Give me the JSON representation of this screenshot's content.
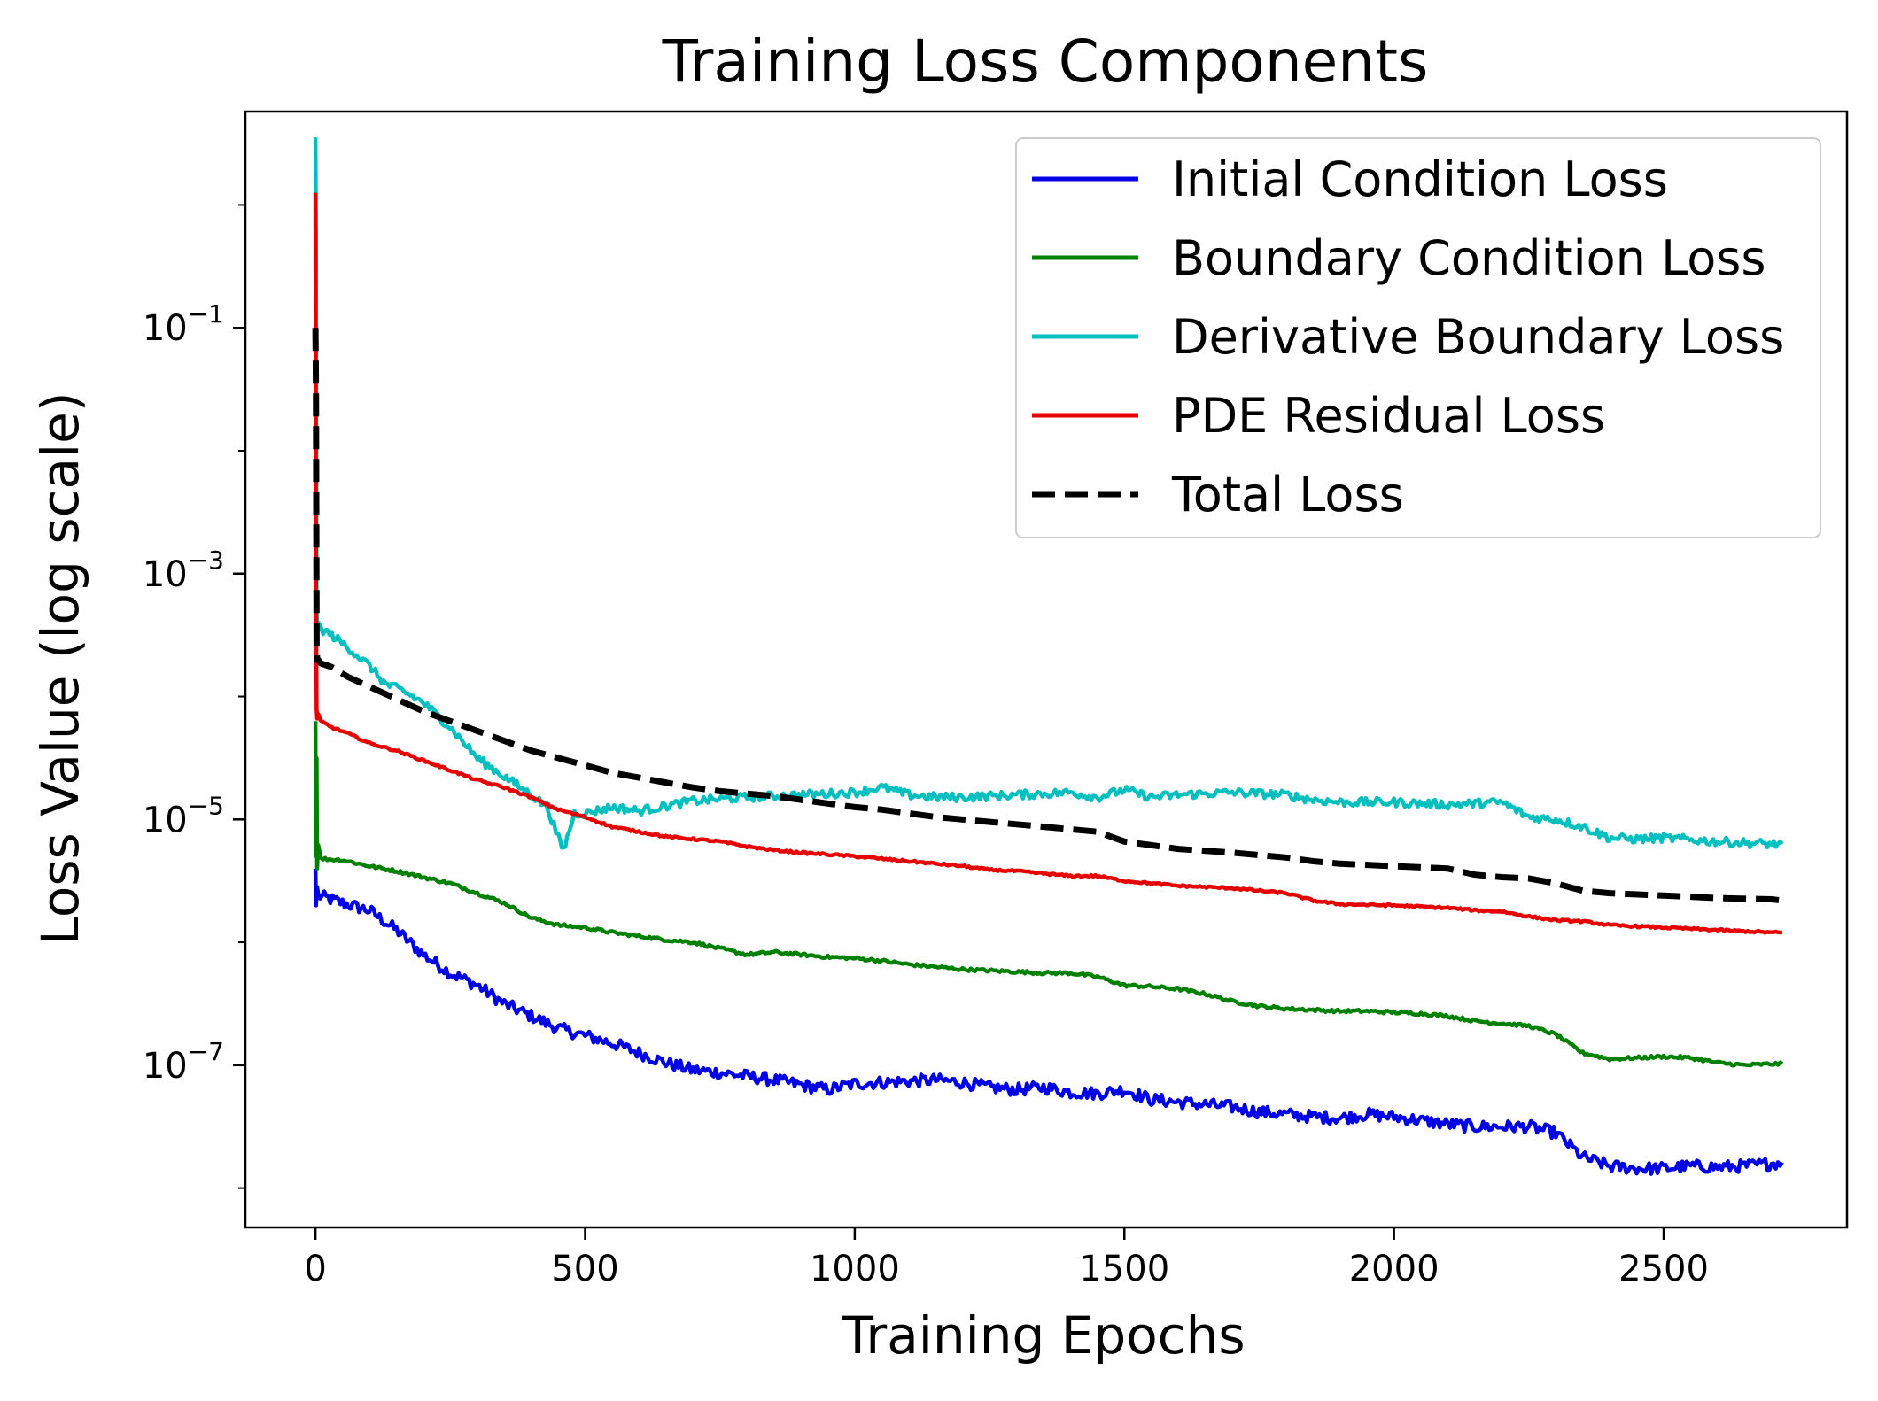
{
  "chart_data": {
    "type": "line",
    "title": "Training Loss Components",
    "xlabel": "Training Epochs",
    "ylabel": "Loss Value (log scale)",
    "yscale": "log",
    "xlim": [
      -130,
      2840
    ],
    "ylim_log10": [
      -8.32,
      0.76
    ],
    "xticks": [
      0,
      500,
      1000,
      1500,
      2000,
      2500
    ],
    "xtick_labels": [
      "0",
      "500",
      "1000",
      "1500",
      "2000",
      "2500"
    ],
    "yticks_log10": [
      -1,
      -3,
      -5,
      -7
    ],
    "ytick_labels": [
      {
        "base": "10",
        "exp": "−1"
      },
      {
        "base": "10",
        "exp": "−3"
      },
      {
        "base": "10",
        "exp": "−5"
      },
      {
        "base": "10",
        "exp": "−7"
      }
    ],
    "legend_position": "top-right",
    "series": [
      {
        "name": "Initial Condition Loss",
        "color": "#0000e6",
        "dash": false,
        "noise": 0.05,
        "x": [
          0,
          1,
          3,
          5,
          20,
          50,
          100,
          150,
          200,
          250,
          300,
          350,
          400,
          450,
          500,
          550,
          600,
          650,
          700,
          750,
          800,
          850,
          900,
          950,
          1000,
          1050,
          1100,
          1150,
          1200,
          1250,
          1300,
          1350,
          1400,
          1450,
          1500,
          1550,
          1600,
          1650,
          1700,
          1750,
          1800,
          1850,
          1900,
          1950,
          2000,
          2050,
          2100,
          2150,
          2200,
          2250,
          2300,
          2350,
          2400,
          2450,
          2500,
          2550,
          2600,
          2650,
          2700,
          2720
        ],
        "y_log10": [
          -5.4,
          -5.7,
          -5.55,
          -5.62,
          -5.64,
          -5.68,
          -5.74,
          -5.9,
          -6.1,
          -6.25,
          -6.35,
          -6.5,
          -6.6,
          -6.7,
          -6.76,
          -6.82,
          -6.9,
          -6.98,
          -7.04,
          -7.06,
          -7.09,
          -7.12,
          -7.16,
          -7.2,
          -7.15,
          -7.14,
          -7.13,
          -7.12,
          -7.14,
          -7.18,
          -7.2,
          -7.18,
          -7.22,
          -7.23,
          -7.2,
          -7.28,
          -7.3,
          -7.32,
          -7.34,
          -7.38,
          -7.4,
          -7.42,
          -7.43,
          -7.4,
          -7.42,
          -7.45,
          -7.48,
          -7.5,
          -7.5,
          -7.5,
          -7.55,
          -7.75,
          -7.82,
          -7.84,
          -7.84,
          -7.82,
          -7.83,
          -7.82,
          -7.8,
          -7.79
        ]
      },
      {
        "name": "Boundary Condition Loss",
        "color": "#008000",
        "dash": false,
        "noise": 0.012,
        "x": [
          0,
          1,
          2,
          3,
          5,
          10,
          50,
          100,
          150,
          200,
          250,
          300,
          350,
          400,
          450,
          500,
          550,
          600,
          650,
          700,
          750,
          800,
          850,
          900,
          950,
          1000,
          1050,
          1100,
          1150,
          1200,
          1250,
          1300,
          1350,
          1400,
          1450,
          1500,
          1550,
          1600,
          1650,
          1700,
          1750,
          1800,
          1850,
          1900,
          1950,
          2000,
          2050,
          2100,
          2150,
          2200,
          2250,
          2300,
          2350,
          2400,
          2450,
          2500,
          2550,
          2600,
          2650,
          2700,
          2720
        ],
        "y_log10": [
          -4.2,
          -5.3,
          -4.5,
          -5.4,
          -5.2,
          -5.32,
          -5.33,
          -5.38,
          -5.42,
          -5.47,
          -5.52,
          -5.6,
          -5.68,
          -5.8,
          -5.86,
          -5.88,
          -5.92,
          -5.95,
          -5.98,
          -6.0,
          -6.05,
          -6.1,
          -6.08,
          -6.1,
          -6.12,
          -6.13,
          -6.15,
          -6.18,
          -6.2,
          -6.22,
          -6.23,
          -6.24,
          -6.25,
          -6.25,
          -6.28,
          -6.35,
          -6.36,
          -6.38,
          -6.42,
          -6.48,
          -6.52,
          -6.54,
          -6.55,
          -6.56,
          -6.56,
          -6.57,
          -6.58,
          -6.6,
          -6.64,
          -6.66,
          -6.68,
          -6.75,
          -6.9,
          -6.95,
          -6.94,
          -6.93,
          -6.94,
          -6.98,
          -7.0,
          -6.99,
          -6.99
        ]
      },
      {
        "name": "Derivative Boundary Loss",
        "color": "#00bfbf",
        "dash": false,
        "noise": 0.035,
        "x": [
          0,
          1,
          2,
          3,
          5,
          10,
          30,
          60,
          100,
          130,
          160,
          200,
          250,
          300,
          350,
          400,
          430,
          450,
          460,
          470,
          480,
          500,
          550,
          600,
          700,
          800,
          900,
          1000,
          1050,
          1100,
          1150,
          1200,
          1300,
          1400,
          1450,
          1500,
          1550,
          1600,
          1700,
          1800,
          1850,
          1900,
          2000,
          2100,
          2150,
          2200,
          2250,
          2300,
          2350,
          2400,
          2450,
          2500,
          2600,
          2700,
          2720
        ],
        "y_log10": [
          0.55,
          -0.2,
          -3.2,
          -3.5,
          -3.4,
          -3.45,
          -3.5,
          -3.6,
          -3.75,
          -3.9,
          -3.95,
          -4.05,
          -4.25,
          -4.5,
          -4.65,
          -4.8,
          -4.9,
          -5.15,
          -5.25,
          -5.1,
          -4.95,
          -4.95,
          -4.9,
          -4.93,
          -4.85,
          -4.82,
          -4.8,
          -4.78,
          -4.74,
          -4.8,
          -4.82,
          -4.82,
          -4.8,
          -4.78,
          -4.82,
          -4.76,
          -4.82,
          -4.8,
          -4.78,
          -4.8,
          -4.84,
          -4.86,
          -4.86,
          -4.88,
          -4.87,
          -4.86,
          -4.98,
          -5.0,
          -5.06,
          -5.15,
          -5.16,
          -5.15,
          -5.18,
          -5.2,
          -5.2
        ]
      },
      {
        "name": "PDE Residual Loss",
        "color": "#e60000",
        "dash": false,
        "noise": 0.008,
        "x": [
          0,
          1,
          2,
          3,
          5,
          10,
          30,
          60,
          100,
          150,
          200,
          250,
          300,
          350,
          400,
          450,
          500,
          550,
          600,
          650,
          700,
          750,
          800,
          850,
          900,
          1000,
          1050,
          1100,
          1150,
          1200,
          1250,
          1300,
          1350,
          1400,
          1450,
          1500,
          1550,
          1600,
          1700,
          1800,
          1850,
          1900,
          2000,
          2100,
          2150,
          2200,
          2250,
          2300,
          2350,
          2400,
          2500,
          2600,
          2700,
          2720
        ],
        "y_log10": [
          0.1,
          -3.0,
          -4.1,
          -4.18,
          -4.15,
          -4.2,
          -4.25,
          -4.3,
          -4.38,
          -4.44,
          -4.52,
          -4.6,
          -4.68,
          -4.74,
          -4.82,
          -4.92,
          -4.98,
          -5.06,
          -5.1,
          -5.14,
          -5.16,
          -5.18,
          -5.22,
          -5.25,
          -5.27,
          -5.3,
          -5.32,
          -5.34,
          -5.36,
          -5.38,
          -5.41,
          -5.42,
          -5.44,
          -5.46,
          -5.46,
          -5.5,
          -5.52,
          -5.54,
          -5.56,
          -5.6,
          -5.66,
          -5.69,
          -5.7,
          -5.72,
          -5.74,
          -5.75,
          -5.79,
          -5.82,
          -5.83,
          -5.86,
          -5.88,
          -5.9,
          -5.92,
          -5.92
        ]
      },
      {
        "name": "Total Loss",
        "color": "#000000",
        "dash": true,
        "noise": 0,
        "x": [
          0,
          1,
          2,
          3,
          5,
          10,
          30,
          60,
          100,
          150,
          200,
          250,
          300,
          350,
          400,
          450,
          500,
          550,
          600,
          650,
          700,
          750,
          800,
          850,
          900,
          950,
          1000,
          1050,
          1100,
          1150,
          1200,
          1250,
          1300,
          1350,
          1400,
          1450,
          1500,
          1550,
          1600,
          1700,
          1800,
          1850,
          1900,
          2000,
          2100,
          2150,
          2200,
          2250,
          2300,
          2350,
          2400,
          2500,
          2600,
          2700,
          2720
        ],
        "y_log10": [
          -1.0,
          -1.5,
          -3.6,
          -3.7,
          -3.7,
          -3.73,
          -3.76,
          -3.84,
          -3.92,
          -4.02,
          -4.12,
          -4.2,
          -4.28,
          -4.36,
          -4.44,
          -4.5,
          -4.56,
          -4.62,
          -4.66,
          -4.7,
          -4.74,
          -4.77,
          -4.79,
          -4.81,
          -4.84,
          -4.87,
          -4.9,
          -4.92,
          -4.95,
          -4.98,
          -5.0,
          -5.02,
          -5.04,
          -5.06,
          -5.08,
          -5.1,
          -5.18,
          -5.21,
          -5.24,
          -5.27,
          -5.31,
          -5.34,
          -5.36,
          -5.38,
          -5.4,
          -5.45,
          -5.47,
          -5.48,
          -5.52,
          -5.58,
          -5.6,
          -5.62,
          -5.64,
          -5.65,
          -5.66
        ]
      }
    ]
  }
}
